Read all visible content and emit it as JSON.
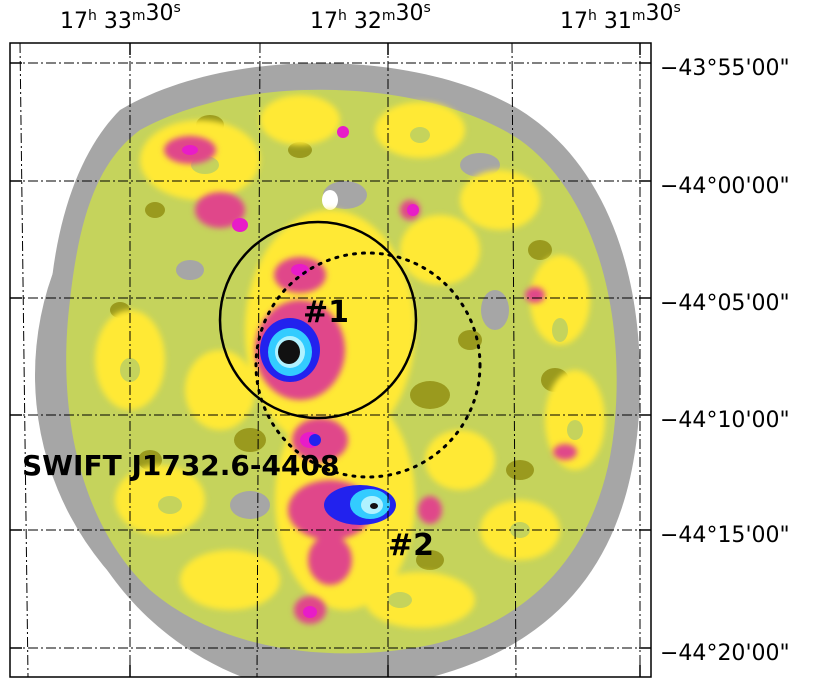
{
  "image": {
    "ra_ticks": [
      {
        "h": "17",
        "m": "33",
        "s": "30"
      },
      {
        "h": "17",
        "m": "32",
        "s": "30"
      },
      {
        "h": "17",
        "m": "31",
        "s": "30"
      }
    ],
    "dec_ticks": [
      {
        "d": "−43",
        "m": "55",
        "s": "00"
      },
      {
        "d": "−44",
        "m": "00",
        "s": "00"
      },
      {
        "d": "−44",
        "m": "05",
        "s": "00"
      },
      {
        "d": "−44",
        "m": "10",
        "s": "00"
      },
      {
        "d": "−44",
        "m": "15",
        "s": "00"
      },
      {
        "d": "−44",
        "m": "20",
        "s": "00"
      }
    ],
    "units": {
      "hour": "h",
      "min": "m",
      "sec": "s",
      "deg": "°",
      "amin": "'",
      "asec": "\""
    },
    "source_label": "SWIFT J1732.6-4408",
    "source_1_label": "#1",
    "source_2_label": "#2",
    "colors": {
      "grey": "#a6a6a6",
      "olive_green": "#c5d35c",
      "dark_olive": "#9a9a1e",
      "yellow": "#ffe936",
      "pink": "#e0478a",
      "magenta": "#e81cc8",
      "blue": "#2222ee",
      "cyan": "#33ccff",
      "light_cyan": "#b0f2ff",
      "black": "#111111"
    }
  }
}
